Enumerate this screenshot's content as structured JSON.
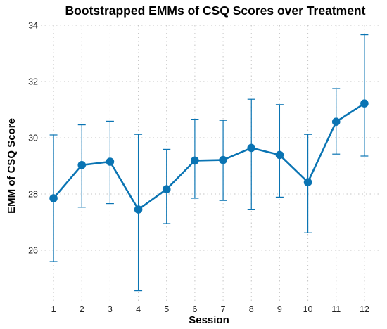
{
  "chart_data": {
    "type": "line",
    "title": "Bootstrapped EMMs of CSQ Scores over Treatment",
    "xlabel": "Session",
    "ylabel": "EMM of CSQ Score",
    "x": [
      1,
      2,
      3,
      4,
      5,
      6,
      7,
      8,
      9,
      10,
      11,
      12
    ],
    "x_tick_labels": [
      "1",
      "2",
      "3",
      "4",
      "5",
      "6",
      "7",
      "8",
      "9",
      "10",
      "11",
      "12"
    ],
    "y_ticks": [
      26,
      28,
      30,
      32,
      34
    ],
    "y_tick_labels": [
      "26",
      "28",
      "30",
      "32",
      "34"
    ],
    "ylim": [
      24.2,
      34.0
    ],
    "grid": true,
    "color": "#0a74b3",
    "series": [
      {
        "values": [
          27.85,
          29.03,
          29.15,
          27.45,
          28.17,
          29.19,
          29.21,
          29.64,
          29.39,
          28.42,
          30.57,
          31.22
        ],
        "ci_lower": [
          25.6,
          27.53,
          27.66,
          24.56,
          26.95,
          27.85,
          27.77,
          27.44,
          27.89,
          26.62,
          29.42,
          29.35
        ],
        "ci_upper": [
          30.1,
          30.46,
          30.59,
          30.12,
          29.59,
          30.66,
          30.62,
          31.37,
          31.18,
          30.12,
          31.75,
          33.66
        ]
      }
    ]
  }
}
